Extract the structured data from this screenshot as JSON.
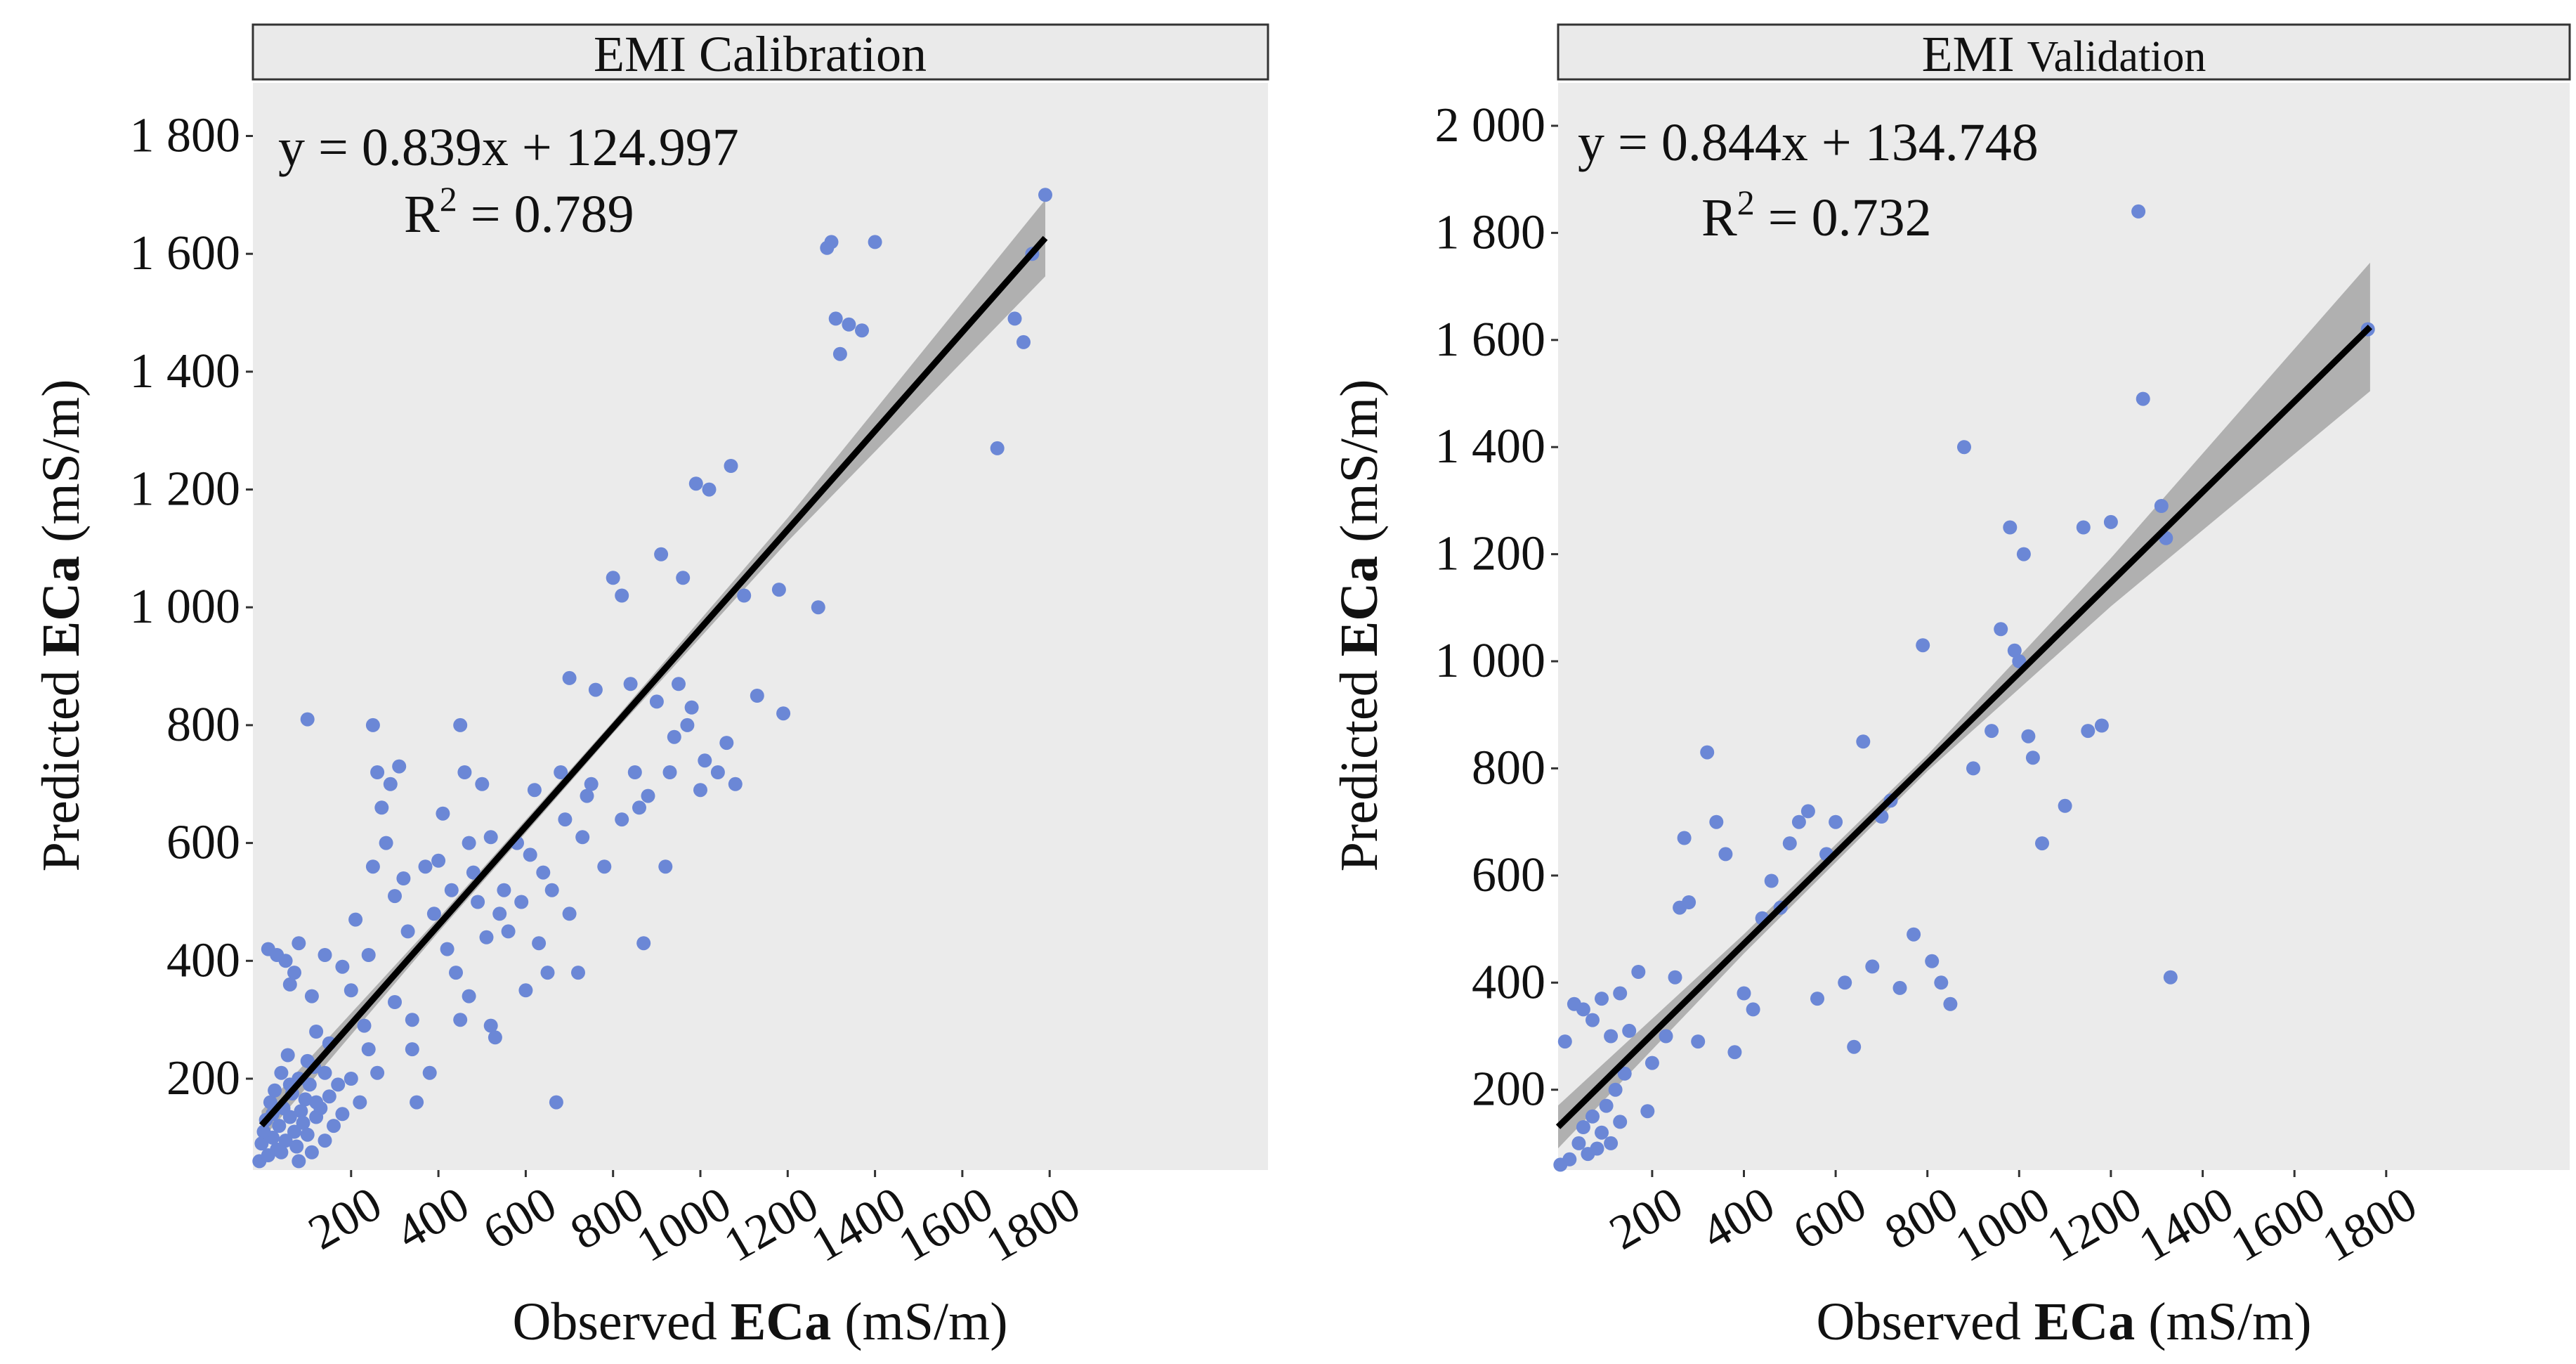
{
  "panels": [
    {
      "id": "calibration",
      "title_parts": [
        "EMI",
        "Calibration"
      ],
      "equation": "y = 0.839x + 124.997",
      "r2_label": "R",
      "r2_sup": "2",
      "r2_value": " = 0.789",
      "xlabel": {
        "pre": "Observed ",
        "bold": "ECa",
        "post": " (mS/m)"
      },
      "ylabel": {
        "pre": "Predicted ",
        "bold": "ECa",
        "post": " (mS/m)"
      }
    },
    {
      "id": "validation",
      "title_parts": [
        "EMI",
        "Validation"
      ],
      "equation": "y = 0.844x + 134.748",
      "r2_label": "R",
      "r2_sup": "2",
      "r2_value": " = 0.732",
      "xlabel": {
        "pre": "Observed ",
        "bold": "ECa",
        "post": " (mS/m)"
      },
      "ylabel": {
        "pre": "Predicted ",
        "bold": "ECa",
        "post": " (mS/m)"
      }
    }
  ],
  "colors": {
    "panel_bg": "#ebebeb",
    "strip_bg": "#eaeaea",
    "point": "#6b87d6",
    "line": "#000000",
    "ribbon": "#a6a6a6"
  },
  "chart_data": [
    {
      "type": "scatter",
      "title": "EMI Calibration",
      "xlabel": "Observed ECa (mS/m)",
      "ylabel": "Predicted ECa (mS/m)",
      "xlim": [
        -25,
        2300
      ],
      "ylim": [
        45,
        1890
      ],
      "xticks": [
        200,
        400,
        600,
        800,
        1000,
        1200,
        1400,
        1600,
        1800
      ],
      "xtick_labels": [
        "200",
        "400",
        "600",
        "800",
        "1000",
        "1200",
        "1400",
        "1600",
        "1800"
      ],
      "yticks": [
        200,
        400,
        600,
        800,
        1000,
        1200,
        1400,
        1600,
        1800
      ],
      "ytick_labels": [
        "200",
        "400",
        "600",
        "800",
        "1 000",
        "1 200",
        "1 400",
        "1 600",
        "1 800"
      ],
      "fit": {
        "slope": 0.839,
        "intercept": 124.997,
        "x_range": [
          -5,
          1790
        ]
      },
      "ribbon": {
        "x": [
          -5,
          400,
          800,
          1200,
          1790
        ],
        "half_width": [
          25,
          12,
          10,
          20,
          65
        ]
      },
      "points": [
        [
          -10,
          60
        ],
        [
          -5,
          90
        ],
        [
          5,
          130
        ],
        [
          10,
          70
        ],
        [
          15,
          160
        ],
        [
          20,
          100
        ],
        [
          25,
          180
        ],
        [
          30,
          80
        ],
        [
          35,
          120
        ],
        [
          40,
          210
        ],
        [
          45,
          150
        ],
        [
          50,
          95
        ],
        [
          55,
          240
        ],
        [
          60,
          135
        ],
        [
          65,
          175
        ],
        [
          70,
          110
        ],
        [
          75,
          85
        ],
        [
          80,
          200
        ],
        [
          85,
          145
        ],
        [
          90,
          125
        ],
        [
          95,
          165
        ],
        [
          100,
          105
        ],
        [
          105,
          190
        ],
        [
          110,
          75
        ],
        [
          115,
          220
        ],
        [
          120,
          135
        ],
        [
          130,
          150
        ],
        [
          140,
          95
        ],
        [
          150,
          170
        ],
        [
          160,
          120
        ],
        [
          10,
          420
        ],
        [
          30,
          410
        ],
        [
          50,
          400
        ],
        [
          60,
          360
        ],
        [
          70,
          380
        ],
        [
          80,
          430
        ],
        [
          100,
          810
        ],
        [
          110,
          340
        ],
        [
          120,
          280
        ],
        [
          140,
          410
        ],
        [
          150,
          260
        ],
        [
          170,
          190
        ],
        [
          180,
          390
        ],
        [
          200,
          350
        ],
        [
          210,
          470
        ],
        [
          230,
          290
        ],
        [
          240,
          410
        ],
        [
          250,
          560
        ],
        [
          250,
          800
        ],
        [
          260,
          720
        ],
        [
          270,
          660
        ],
        [
          280,
          600
        ],
        [
          290,
          700
        ],
        [
          300,
          510
        ],
        [
          310,
          730
        ],
        [
          320,
          540
        ],
        [
          330,
          450
        ],
        [
          340,
          250
        ],
        [
          350,
          160
        ],
        [
          380,
          210
        ],
        [
          400,
          570
        ],
        [
          420,
          420
        ],
        [
          440,
          380
        ],
        [
          450,
          800
        ],
        [
          460,
          720
        ],
        [
          470,
          600
        ],
        [
          480,
          550
        ],
        [
          490,
          500
        ],
        [
          500,
          700
        ],
        [
          510,
          440
        ],
        [
          520,
          290
        ],
        [
          530,
          270
        ],
        [
          550,
          520
        ],
        [
          560,
          450
        ],
        [
          580,
          600
        ],
        [
          600,
          350
        ],
        [
          620,
          690
        ],
        [
          630,
          430
        ],
        [
          640,
          550
        ],
        [
          650,
          380
        ],
        [
          670,
          160
        ],
        [
          680,
          720
        ],
        [
          690,
          640
        ],
        [
          700,
          880
        ],
        [
          720,
          380
        ],
        [
          740,
          680
        ],
        [
          760,
          860
        ],
        [
          780,
          560
        ],
        [
          800,
          1050
        ],
        [
          820,
          1020
        ],
        [
          840,
          870
        ],
        [
          860,
          660
        ],
        [
          870,
          430
        ],
        [
          900,
          840
        ],
        [
          910,
          1090
        ],
        [
          920,
          560
        ],
        [
          930,
          720
        ],
        [
          940,
          780
        ],
        [
          960,
          1050
        ],
        [
          980,
          830
        ],
        [
          990,
          1210
        ],
        [
          1000,
          690
        ],
        [
          1010,
          740
        ],
        [
          1020,
          1200
        ],
        [
          1040,
          720
        ],
        [
          1060,
          770
        ],
        [
          1070,
          1240
        ],
        [
          1100,
          1020
        ],
        [
          1130,
          850
        ],
        [
          1180,
          1030
        ],
        [
          1190,
          820
        ],
        [
          1270,
          1000
        ],
        [
          1290,
          1610
        ],
        [
          1300,
          1620
        ],
        [
          1310,
          1490
        ],
        [
          1320,
          1430
        ],
        [
          1340,
          1480
        ],
        [
          1370,
          1470
        ],
        [
          1400,
          1620
        ],
        [
          1680,
          1270
        ],
        [
          1720,
          1490
        ],
        [
          1740,
          1450
        ],
        [
          1760,
          1600
        ],
        [
          1790,
          1700
        ],
        [
          0,
          110
        ],
        [
          20,
          140
        ],
        [
          40,
          75
        ],
        [
          60,
          190
        ],
        [
          80,
          60
        ],
        [
          100,
          230
        ],
        [
          120,
          160
        ],
        [
          140,
          210
        ],
        [
          180,
          140
        ],
        [
          200,
          200
        ],
        [
          220,
          160
        ],
        [
          240,
          250
        ],
        [
          260,
          210
        ],
        [
          300,
          330
        ],
        [
          340,
          300
        ],
        [
          370,
          560
        ],
        [
          390,
          480
        ],
        [
          410,
          650
        ],
        [
          430,
          520
        ],
        [
          450,
          300
        ],
        [
          470,
          340
        ],
        [
          520,
          610
        ],
        [
          540,
          480
        ],
        [
          590,
          500
        ],
        [
          610,
          580
        ],
        [
          660,
          520
        ],
        [
          700,
          480
        ],
        [
          730,
          610
        ],
        [
          750,
          700
        ],
        [
          820,
          640
        ],
        [
          850,
          720
        ],
        [
          880,
          680
        ],
        [
          950,
          870
        ],
        [
          970,
          800
        ],
        [
          1080,
          700
        ]
      ]
    },
    {
      "type": "scatter",
      "title": "EMI Validation",
      "xlabel": "Observed ECa (mS/m)",
      "ylabel": "Predicted ECa (mS/m)",
      "xlim": [
        -5,
        2200
      ],
      "ylim": [
        50,
        2080
      ],
      "xticks": [
        200,
        400,
        600,
        800,
        1000,
        1200,
        1400,
        1600,
        1800
      ],
      "xtick_labels": [
        "200",
        "400",
        "600",
        "800",
        "1000",
        "1200",
        "1400",
        "1600",
        "1800"
      ],
      "yticks": [
        200,
        400,
        600,
        800,
        1000,
        1200,
        1400,
        1600,
        1800,
        2000
      ],
      "ytick_labels": [
        "200",
        "400",
        "600",
        "800",
        "1 000",
        "1 200",
        "1 400",
        "1 600",
        "1 800",
        "2 000"
      ],
      "fit": {
        "slope": 0.844,
        "intercept": 134.748,
        "x_range": [
          -5,
          1765
        ]
      },
      "ribbon": {
        "x": [
          -5,
          400,
          800,
          1200,
          1765
        ],
        "half_width": [
          40,
          18,
          15,
          45,
          120
        ]
      },
      "points": [
        [
          0,
          60
        ],
        [
          20,
          70
        ],
        [
          40,
          100
        ],
        [
          50,
          130
        ],
        [
          60,
          80
        ],
        [
          70,
          150
        ],
        [
          80,
          90
        ],
        [
          90,
          120
        ],
        [
          100,
          170
        ],
        [
          110,
          100
        ],
        [
          120,
          200
        ],
        [
          130,
          140
        ],
        [
          140,
          230
        ],
        [
          10,
          290
        ],
        [
          30,
          360
        ],
        [
          50,
          350
        ],
        [
          70,
          330
        ],
        [
          90,
          370
        ],
        [
          110,
          300
        ],
        [
          130,
          380
        ],
        [
          150,
          310
        ],
        [
          170,
          420
        ],
        [
          190,
          160
        ],
        [
          200,
          250
        ],
        [
          230,
          300
        ],
        [
          250,
          410
        ],
        [
          260,
          540
        ],
        [
          270,
          670
        ],
        [
          280,
          550
        ],
        [
          300,
          290
        ],
        [
          320,
          830
        ],
        [
          340,
          700
        ],
        [
          360,
          640
        ],
        [
          380,
          270
        ],
        [
          400,
          380
        ],
        [
          420,
          350
        ],
        [
          440,
          520
        ],
        [
          460,
          590
        ],
        [
          480,
          540
        ],
        [
          500,
          660
        ],
        [
          520,
          700
        ],
        [
          540,
          720
        ],
        [
          560,
          370
        ],
        [
          580,
          640
        ],
        [
          600,
          700
        ],
        [
          620,
          400
        ],
        [
          640,
          280
        ],
        [
          660,
          850
        ],
        [
          680,
          430
        ],
        [
          700,
          710
        ],
        [
          720,
          740
        ],
        [
          740,
          390
        ],
        [
          770,
          490
        ],
        [
          790,
          1030
        ],
        [
          810,
          440
        ],
        [
          830,
          400
        ],
        [
          850,
          360
        ],
        [
          880,
          1400
        ],
        [
          900,
          800
        ],
        [
          940,
          870
        ],
        [
          960,
          1060
        ],
        [
          980,
          1250
        ],
        [
          990,
          1020
        ],
        [
          1000,
          1000
        ],
        [
          1010,
          1200
        ],
        [
          1020,
          860
        ],
        [
          1030,
          820
        ],
        [
          1050,
          660
        ],
        [
          1100,
          730
        ],
        [
          1140,
          1250
        ],
        [
          1150,
          870
        ],
        [
          1180,
          880
        ],
        [
          1200,
          1260
        ],
        [
          1260,
          1840
        ],
        [
          1270,
          1490
        ],
        [
          1310,
          1290
        ],
        [
          1320,
          1230
        ],
        [
          1330,
          410
        ],
        [
          1760,
          1620
        ]
      ]
    }
  ]
}
